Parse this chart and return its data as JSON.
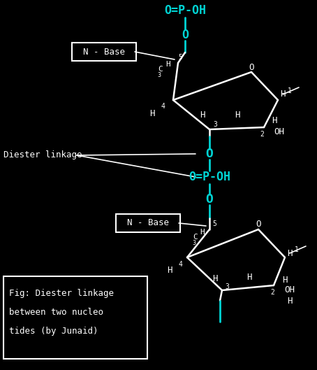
{
  "bg_color": "#000000",
  "white": "#ffffff",
  "cyan": "#00d4d4",
  "figsize": [
    4.54,
    5.29
  ],
  "dpi": 100,
  "top_phosphate_text": "O=P-OH",
  "mid_phosphate_text": "O=P-OH",
  "o_text": "O",
  "nbase_text": "N - Base",
  "diester_text": "Diester linkage",
  "caption1": "Fig: Diester linkage",
  "caption2": "between two nucleo",
  "caption3": "tides (by Junaid)"
}
